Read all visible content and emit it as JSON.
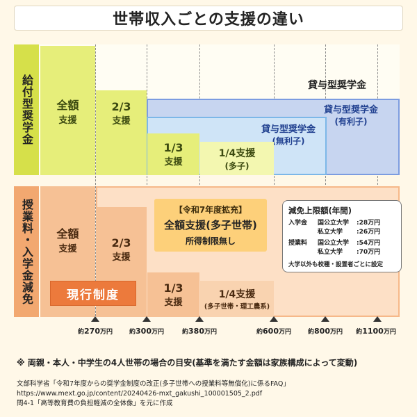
{
  "title": "世帯収入ごとの支援の違い",
  "rows": {
    "scholarship": "給付型奨学金",
    "tuition": "授業料・入学金減免"
  },
  "scholarship": {
    "full": {
      "line1": "全額",
      "line2": "支援"
    },
    "two_thirds": {
      "line1": "2/3",
      "line2": "支援"
    },
    "one_third": {
      "line1": "1/3",
      "line2": "支援"
    },
    "one_quarter": {
      "line1": "1/4支援",
      "line2": "(多子)"
    }
  },
  "loan": {
    "header": "貸与型奨学金",
    "interest": {
      "line1": "貸与型奨学金",
      "line2": "(有利子)"
    },
    "no_interest": {
      "line1": "貸与型奨学金",
      "line2": "(無利子)"
    }
  },
  "tuition": {
    "full": {
      "line1": "全額",
      "line2": "支援"
    },
    "two_thirds": {
      "line1": "2/3",
      "line2": "支援"
    },
    "one_third": {
      "line1": "1/3",
      "line2": "支援"
    },
    "one_quarter": {
      "line1": "1/4支援",
      "line2": "(多子世帯・理工農系)"
    },
    "current": "現行制度",
    "expansion": {
      "line1": "【令和7年度拡充】",
      "line2": "全額支援(多子世帯)",
      "line3": "所得制限無し"
    }
  },
  "limits": {
    "title": "減免上限額(年間)",
    "rows": [
      {
        "cat": "入学金",
        "school": "国公立大学",
        "amount": ":28万円"
      },
      {
        "cat": "",
        "school": "私立大学",
        "amount": ":26万円"
      },
      {
        "cat": "授業料",
        "school": "国公立大学",
        "amount": ":54万円"
      },
      {
        "cat": "",
        "school": "私立大学",
        "amount": ":70万円"
      }
    ],
    "note": "大学以外も校種・設置者ごとに設定"
  },
  "axis": [
    {
      "pre": "約",
      "num": "270",
      "unit": "万円"
    },
    {
      "pre": "約",
      "num": "300",
      "unit": "万円"
    },
    {
      "pre": "約",
      "num": "380",
      "unit": "万円"
    },
    {
      "pre": "約",
      "num": "600",
      "unit": "万円"
    },
    {
      "pre": "約",
      "num": "800",
      "unit": "万円"
    },
    {
      "pre": "約",
      "num": "1100",
      "unit": "万円"
    }
  ],
  "footnote": "※ 両親・本人・中学生の4人世帯の場合の目安(基準を満たす金額は家族構成によって変動)",
  "source": [
    "文部科学省「令和7年度からの奨学金制度の改正(多子世帯への授業料等無償化)に係るFAQ」",
    "https://www.mext.go.jp/content/20240426-mxt_gakushi_100001505_2.pdf",
    "問4-1「高等教育費の負担軽減の全体像」を元に作成"
  ]
}
